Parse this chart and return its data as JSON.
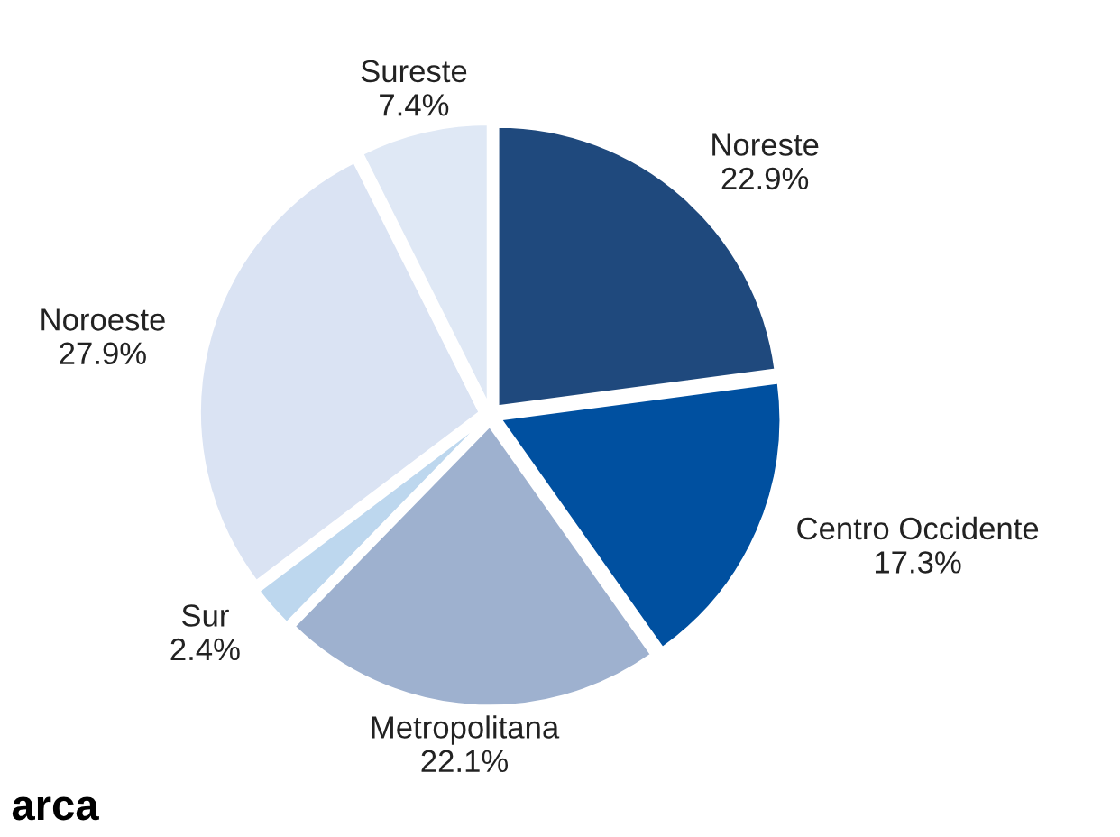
{
  "chart_data": {
    "type": "pie",
    "categories": [
      "Noreste",
      "Centro Occidente",
      "Metropolitana",
      "Sur",
      "Noroeste",
      "Sureste"
    ],
    "values": [
      22.9,
      17.3,
      22.1,
      2.4,
      27.9,
      7.4
    ],
    "colors": [
      "#1f497d",
      "#0050a0",
      "#9eb1cf",
      "#bdd7ee",
      "#dae3f3",
      "#dfe8f5"
    ],
    "value_labels": [
      "22.9%",
      "17.3%",
      "22.1%",
      "2.4%",
      "27.9%",
      "7.4%"
    ],
    "annotations": [
      "arca"
    ]
  }
}
